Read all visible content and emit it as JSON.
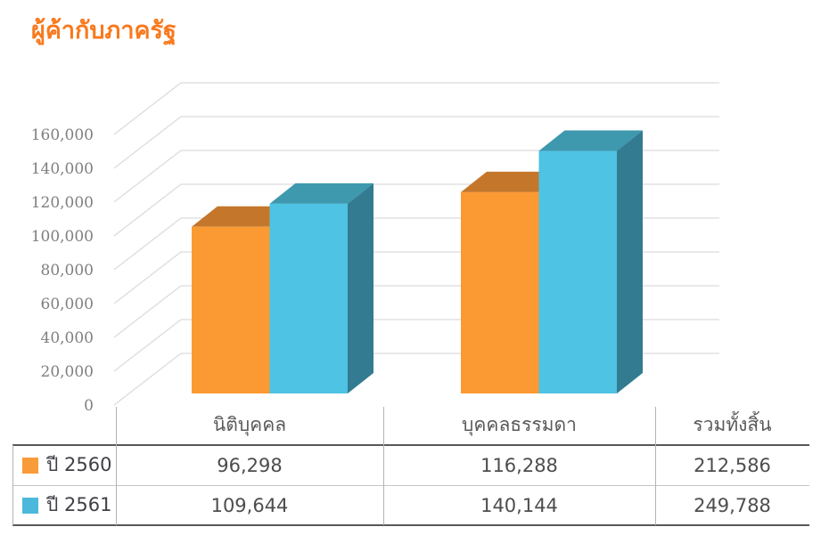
{
  "title": "ผู้ค้ากับภาครัฐ",
  "colors": {
    "title": "#F8791D",
    "gridline": "#DCDCDC",
    "axis_text": "#7F7F7F",
    "series_2560_front": "#FB9A32",
    "series_2560_top": "#C4772B",
    "series_2561_front": "#4EC3E4",
    "series_2561_top": "#3E98AE",
    "series_2561_side": "#337B91",
    "legend_2560_swatch": "#F89B38",
    "legend_2561_swatch": "#4BB8DC",
    "table_border_dark": "#585858",
    "table_border_light": "#C6C6C6"
  },
  "chart_data": {
    "type": "bar",
    "projection": "3d",
    "title": "ผู้ค้ากับภาครัฐ",
    "categories": [
      "นิติบุคคล",
      "บุคคลธรรมดา"
    ],
    "series": [
      {
        "name": "ปี 2560",
        "color": "#FB9A32",
        "values": [
          96298,
          116288
        ],
        "total": 212586
      },
      {
        "name": "ปี 2561",
        "color": "#4EC3E4",
        "values": [
          109644,
          140144
        ],
        "total": 249788
      }
    ],
    "xlabel": "",
    "ylabel": "",
    "ylim": [
      0,
      160000
    ],
    "ytick_step": 20000,
    "ytick_labels": [
      "0",
      "20,000",
      "40,000",
      "60,000",
      "80,000",
      "100,000",
      "120,000",
      "140,000",
      "160,000"
    ],
    "grid": true,
    "legend_position": "table-left"
  },
  "table": {
    "columns": [
      "นิติบุคคล",
      "บุคคลธรรมดา",
      "รวมทั้งสิ้น"
    ],
    "rows": [
      {
        "label": "ปี 2560",
        "swatch_color": "#F89B38",
        "values": [
          "96,298",
          "116,288",
          "212,586"
        ]
      },
      {
        "label": "ปี 2561",
        "swatch_color": "#4BB8DC",
        "values": [
          "109,644",
          "140,144",
          "249,788"
        ]
      }
    ]
  }
}
